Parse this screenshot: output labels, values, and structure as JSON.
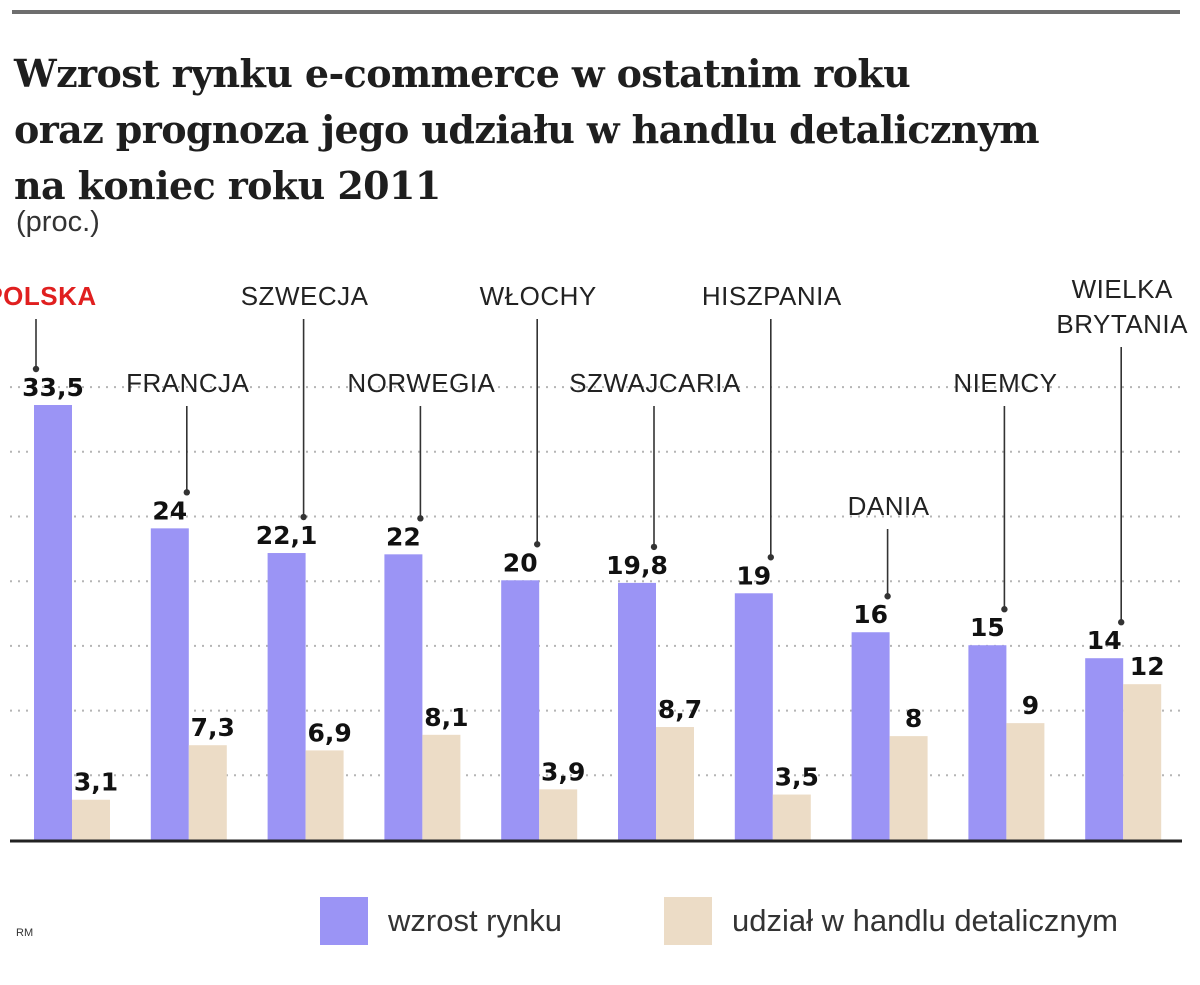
{
  "title_lines": [
    "Wzrost rynku e-commerce w ostatnim roku",
    "oraz prognoza jego udziału w handlu detalicznym",
    "na koniec roku 2011"
  ],
  "unit_label": "(proc.)",
  "credit": "RM",
  "colors": {
    "growth": "#9b94f5",
    "share": "#ecdcc6",
    "highlight": "#e01f1f",
    "grid": "#b5b5b5",
    "axis": "#222222"
  },
  "chart_data": {
    "type": "bar",
    "categories": [
      [
        "POLSKA"
      ],
      [
        "FRANCJA"
      ],
      [
        "SZWECJA"
      ],
      [
        "NORWEGIA"
      ],
      [
        "WŁOCHY"
      ],
      [
        "SZWAJCARIA"
      ],
      [
        "HISZPANIA"
      ],
      [
        "DANIA"
      ],
      [
        "NIEMCY"
      ],
      [
        "WIELKA",
        "BRYTANIA"
      ]
    ],
    "highlight_category": "POLSKA",
    "series": [
      {
        "name": "wzrost rynku",
        "values": [
          33.5,
          24,
          22.1,
          22,
          20,
          19.8,
          19,
          16,
          15,
          14
        ],
        "value_labels": [
          "33,5",
          "24",
          "22,1",
          "22",
          "20",
          "19,8",
          "19",
          "16",
          "15",
          "14"
        ]
      },
      {
        "name": "udział w handlu detalicznym",
        "values": [
          3.1,
          7.3,
          6.9,
          8.1,
          3.9,
          8.7,
          3.5,
          8,
          9,
          12
        ],
        "value_labels": [
          "3,1",
          "7,3",
          "6,9",
          "8,1",
          "3,9",
          "8,7",
          "3,5",
          "8",
          "9",
          "12"
        ]
      }
    ],
    "ylim": [
      0,
      33.5
    ],
    "grid": true,
    "legend_position": "bottom-right"
  }
}
